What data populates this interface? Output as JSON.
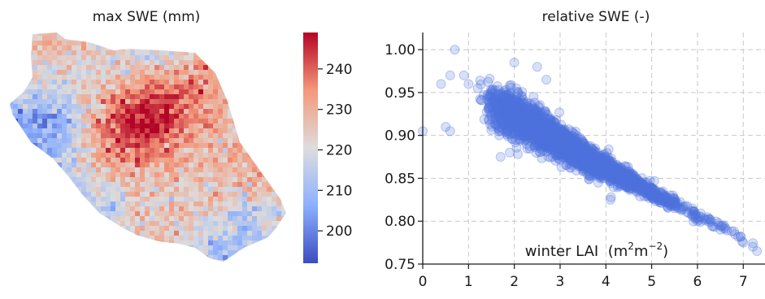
{
  "colors": {
    "cmap_low": "#3b4cc0",
    "cmap_mid": "#dddddd",
    "cmap_high": "#b40426",
    "scatter": "#4f74dd",
    "grid": "#c8c8c8",
    "axis": "#1a1a1a"
  },
  "chart_data": [
    {
      "type": "heatmap",
      "title": "max SWE (mm)",
      "description_of_field": "gridded map of a catchment; values higher (red) in the north-east interior, lower (blue) along the western and southern margins",
      "colorbar": {
        "vmin": 192,
        "vmax": 249,
        "ticks": [
          200,
          210,
          220,
          230,
          240
        ],
        "tick_labels": [
          "200",
          "210",
          "220",
          "230",
          "240"
        ]
      },
      "axes": "off"
    },
    {
      "type": "scatter",
      "title": "relative SWE (-)",
      "xlabel": "winter LAI",
      "xlabel_unit_base": "m",
      "xlabel_unit_exp1": "2",
      "xlabel_unit_mid": "m",
      "xlabel_unit_exp2": "−2",
      "xlim": [
        0,
        7.4
      ],
      "ylim": [
        0.75,
        1.02
      ],
      "xticks": [
        0,
        1,
        2,
        3,
        4,
        5,
        6,
        7
      ],
      "xtick_labels": [
        "0",
        "1",
        "2",
        "3",
        "4",
        "5",
        "6",
        "7"
      ],
      "yticks": [
        0.75,
        0.8,
        0.85,
        0.9,
        0.95,
        1.0
      ],
      "ytick_labels": [
        "0.75",
        "0.80",
        "0.85",
        "0.90",
        "0.95",
        "1.00"
      ],
      "grid": true,
      "trend": {
        "x": [
          0.0,
          0.5,
          1.0,
          1.5,
          2.0,
          2.5,
          3.0,
          3.5,
          4.0,
          4.5,
          5.0,
          5.5,
          6.0,
          6.5,
          7.0,
          7.3
        ],
        "y_center": [
          0.905,
          0.955,
          0.945,
          0.935,
          0.922,
          0.908,
          0.892,
          0.876,
          0.862,
          0.848,
          0.834,
          0.82,
          0.806,
          0.794,
          0.78,
          0.772
        ],
        "y_spread": [
          0.0,
          0.03,
          0.03,
          0.03,
          0.028,
          0.024,
          0.02,
          0.018,
          0.015,
          0.012,
          0.01,
          0.008,
          0.006,
          0.005,
          0.004,
          0.003
        ]
      },
      "points_sample": [
        [
          0.0,
          0.905
        ],
        [
          0.7,
          1.0
        ],
        [
          0.9,
          0.97
        ],
        [
          0.4,
          0.96
        ],
        [
          0.6,
          0.97
        ],
        [
          1.0,
          0.96
        ],
        [
          1.2,
          0.955
        ],
        [
          1.5,
          0.945
        ],
        [
          1.8,
          0.925
        ],
        [
          2.0,
          0.985
        ],
        [
          2.5,
          0.98
        ],
        [
          2.7,
          0.965
        ],
        [
          3.0,
          0.895
        ],
        [
          3.5,
          0.87
        ],
        [
          4.0,
          0.87
        ],
        [
          4.5,
          0.84
        ],
        [
          5.0,
          0.83
        ],
        [
          5.5,
          0.815
        ],
        [
          6.0,
          0.8
        ],
        [
          6.5,
          0.79
        ],
        [
          7.0,
          0.775
        ],
        [
          7.3,
          0.765
        ],
        [
          0.5,
          0.91
        ],
        [
          0.6,
          0.905
        ],
        [
          1.7,
          0.875
        ],
        [
          1.9,
          0.88
        ],
        [
          4.1,
          0.825
        ]
      ]
    }
  ]
}
